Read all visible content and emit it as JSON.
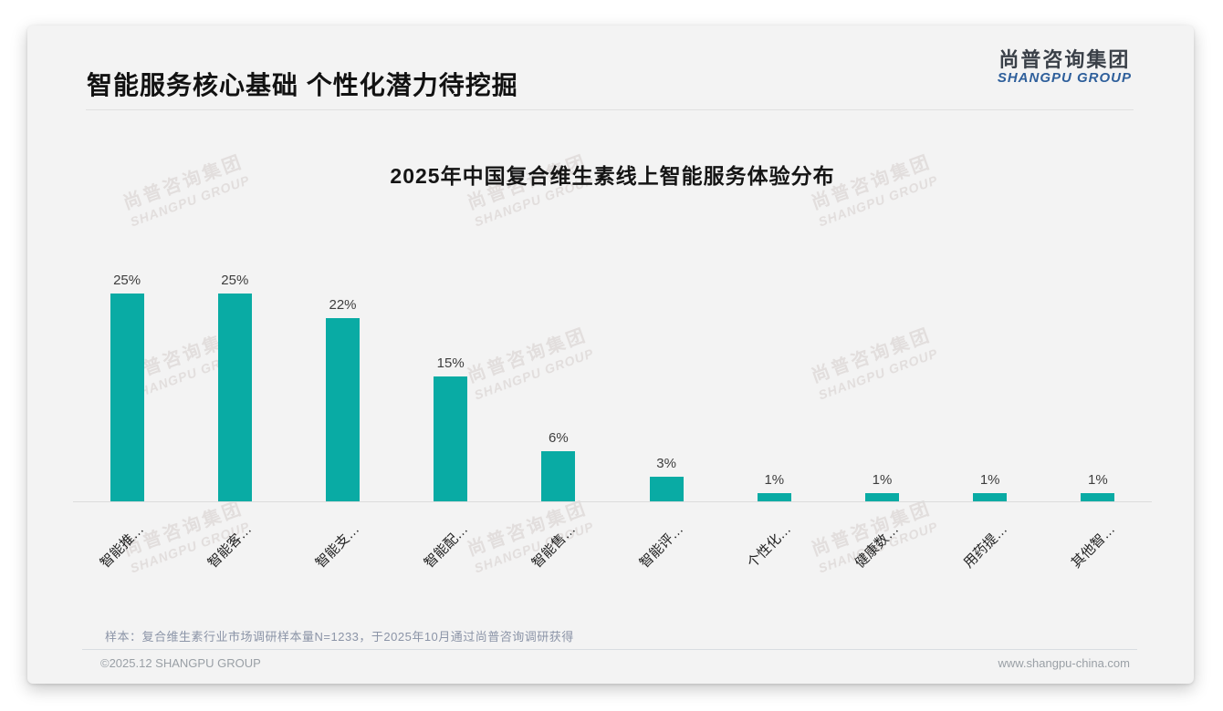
{
  "page": {
    "title": "智能服务核心基础 个性化潜力待挖掘",
    "logo": {
      "cn": "尚普咨询集团",
      "en": "SHANGPU GROUP"
    },
    "watermark": {
      "cn": "尚普咨询集团",
      "en": "SHANGPU GROUP"
    },
    "sample_note": "样本：复合维生素行业市场调研样本量N=1233，于2025年10月通过尚普咨询调研获得",
    "footer": {
      "left": "©2025.12 SHANGPU GROUP",
      "right": "www.shangpu-china.com"
    }
  },
  "colors": {
    "bar": "#09aba4",
    "slide_bg": "#f3f3f3",
    "logo_blue": "#2e5f9b",
    "value_label": "#3d3d3d",
    "axis_line": "#dcdcdc"
  },
  "chart_data": {
    "type": "bar",
    "title": "2025年中国复合维生素线上智能服务体验分布",
    "categories": [
      "智能推…",
      "智能客…",
      "智能支…",
      "智能配…",
      "智能售…",
      "智能评…",
      "个性化…",
      "健康数…",
      "用药提…",
      "其他智…"
    ],
    "values": [
      25,
      25,
      22,
      15,
      6,
      3,
      1,
      1,
      1,
      1
    ],
    "unit": "%",
    "value_labels_shown": true,
    "xlabel": "",
    "ylabel": "",
    "ylim": [
      0,
      25
    ],
    "grid": false,
    "legend": "none",
    "x_tick_rotation_deg": 45,
    "bar_color": "#09aba4"
  }
}
